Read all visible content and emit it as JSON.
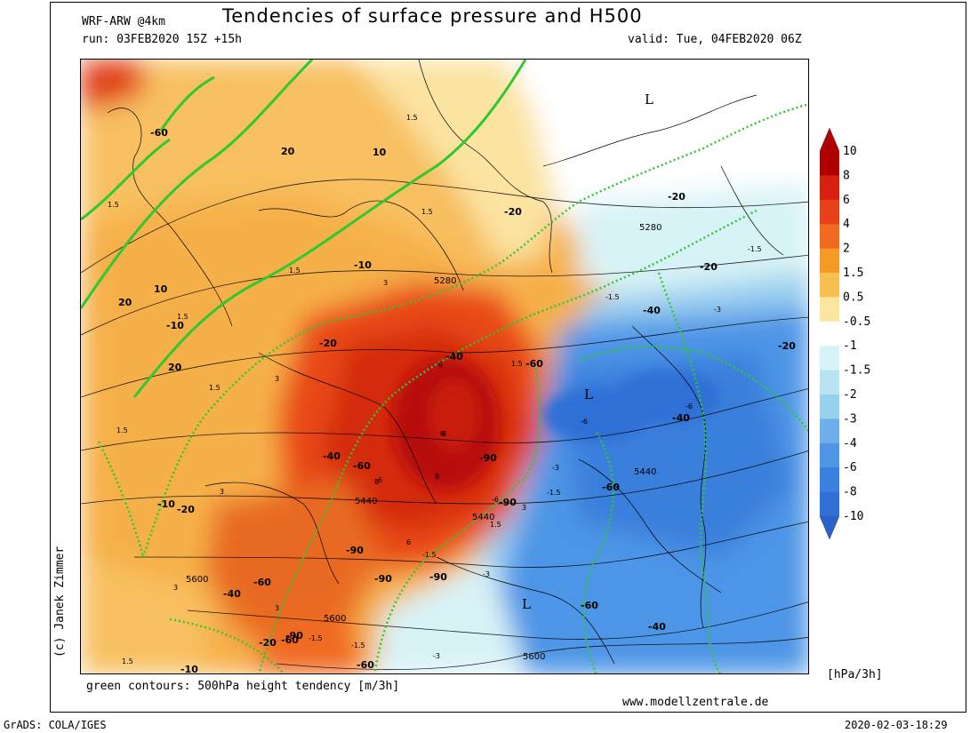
{
  "header": {
    "model": "WRF-ARW @4km",
    "title": "Tendencies of surface pressure and H500",
    "run": "run: 03FEB2020 15Z +15h",
    "valid": "valid: Tue, 04FEB2020 06Z"
  },
  "footer": {
    "contours_note": "green contours: 500hPa height tendency [m/3h]",
    "website": "www.modellzentrale.de",
    "grads": "GrADS: COLA/IGES",
    "timestamp": "2020-02-03-18:29",
    "copyright": "(c) Janek Zimmer"
  },
  "colorbar": {
    "unit": "[hPa/3h]",
    "labels": [
      "10",
      "8",
      "6",
      "4",
      "2",
      "1.5",
      "0.5",
      "-0.5",
      "-1",
      "-1.5",
      "-2",
      "-3",
      "-4",
      "-6",
      "-8",
      "-10"
    ],
    "colors": [
      "#b00000",
      "#d82010",
      "#e84018",
      "#f06a20",
      "#f59a25",
      "#f8c050",
      "#fbe7a0",
      "#ffffff",
      "#d8f3f6",
      "#b8e4f2",
      "#98d0f0",
      "#6fb0ec",
      "#4e95e6",
      "#3a80de",
      "#2f6fd6",
      "#2a62cc"
    ]
  },
  "map": {
    "low_markers": [
      "L",
      "L",
      "L"
    ],
    "height_labels": [
      "5280",
      "5280",
      "5440",
      "5440",
      "5440",
      "5600",
      "5600",
      "5600"
    ],
    "tendency_labels": [
      "-60",
      "20",
      "20",
      "10",
      "-10",
      "-10",
      "-20",
      "-20",
      "-20",
      "-20",
      "-20",
      "-20",
      "-40",
      "-40",
      "-40",
      "-40",
      "-40",
      "-40",
      "-60",
      "-60",
      "-60",
      "-60",
      "-60",
      "-60",
      "-60",
      "-90",
      "-90",
      "-90",
      "-90",
      "-90",
      "-90",
      "10",
      "-10",
      "-10",
      "20",
      "-20"
    ],
    "pressure_labels": [
      "1.5",
      "1.5",
      "1.5",
      "1.5",
      "1.5",
      "1.5",
      "1.5",
      "1.5",
      "1.5",
      "1.5",
      "3",
      "3",
      "3",
      "3",
      "3",
      "3",
      "-1.5",
      "-1.5",
      "-1.5",
      "-1.5",
      "-1.5",
      "-1.5",
      "-3",
      "-3",
      "-3",
      "-3",
      "-6",
      "-6",
      "-6",
      "6",
      "6",
      "6",
      "6",
      "8",
      "8",
      "8"
    ]
  }
}
